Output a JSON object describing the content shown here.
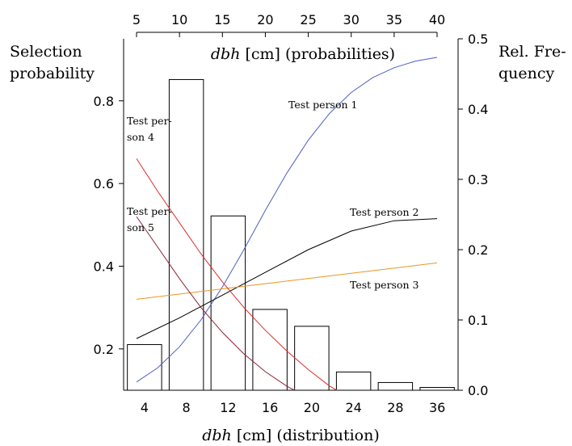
{
  "chart_data": {
    "type": "bar",
    "left_axis_title": [
      "Selection",
      "probability"
    ],
    "right_axis_title": [
      "Rel. Fre-",
      "quency"
    ],
    "top_axis_label": {
      "italic": "dbh",
      "rest": " [cm] (probabilities)"
    },
    "bottom_axis_label": {
      "italic": "dbh",
      "rest": " [cm] (distribution)"
    },
    "top_axis": {
      "range": [
        5,
        40
      ],
      "ticks": [
        "5",
        "10",
        "15",
        "20",
        "25",
        "30",
        "35",
        "40"
      ]
    },
    "left_axis": {
      "range": [
        0.1,
        0.95
      ],
      "ticks": [
        {
          "value": 0.2,
          "label": "0.2"
        },
        {
          "value": 0.4,
          "label": "0.4"
        },
        {
          "value": 0.6,
          "label": "0.6"
        },
        {
          "value": 0.8,
          "label": "0.8"
        }
      ]
    },
    "right_axis": {
      "range": [
        0.0,
        0.5
      ],
      "ticks": [
        {
          "value": 0.0,
          "label": "0.0"
        },
        {
          "value": 0.1,
          "label": "0.1"
        },
        {
          "value": 0.2,
          "label": "0.2"
        },
        {
          "value": 0.3,
          "label": "0.3"
        },
        {
          "value": 0.4,
          "label": "0.4"
        },
        {
          "value": 0.5,
          "label": "0.5"
        }
      ]
    },
    "histogram": {
      "categories": [
        "4",
        "8",
        "12",
        "16",
        "20",
        "24",
        "28",
        "36"
      ],
      "values": [
        0.065,
        0.442,
        0.248,
        0.115,
        0.091,
        0.026,
        0.011,
        0.004
      ]
    },
    "series": [
      {
        "name": "Test person 1",
        "color": "#4f5fbf",
        "label": [
          "Test person 1"
        ],
        "points": [
          [
            5,
            0.12
          ],
          [
            7.5,
            0.155
          ],
          [
            10,
            0.205
          ],
          [
            12.5,
            0.27
          ],
          [
            15,
            0.35
          ],
          [
            17.5,
            0.44
          ],
          [
            20,
            0.535
          ],
          [
            22.5,
            0.625
          ],
          [
            25,
            0.705
          ],
          [
            27.5,
            0.77
          ],
          [
            30,
            0.82
          ],
          [
            32.5,
            0.856
          ],
          [
            35,
            0.88
          ],
          [
            37.5,
            0.896
          ],
          [
            40,
            0.905
          ]
        ]
      },
      {
        "name": "Test person 2",
        "color": "#000000",
        "label": [
          "Test person 2"
        ],
        "points": [
          [
            5,
            0.225
          ],
          [
            10,
            0.275
          ],
          [
            15,
            0.33
          ],
          [
            20,
            0.385
          ],
          [
            25,
            0.44
          ],
          [
            30,
            0.485
          ],
          [
            35,
            0.51
          ],
          [
            40,
            0.515
          ]
        ]
      },
      {
        "name": "Test person 3",
        "color": "#e8961e",
        "label": [
          "Test person 3"
        ],
        "points": [
          [
            5,
            0.32
          ],
          [
            40,
            0.408
          ]
        ]
      },
      {
        "name": "Test person 4",
        "color": "#dd2a2a",
        "label": [
          "Test per-",
          "son 4"
        ],
        "points": [
          [
            5,
            0.66
          ],
          [
            7.5,
            0.58
          ],
          [
            10,
            0.505
          ],
          [
            12.5,
            0.43
          ],
          [
            15,
            0.362
          ],
          [
            17.5,
            0.3
          ],
          [
            20,
            0.245
          ],
          [
            22.5,
            0.195
          ],
          [
            25,
            0.15
          ],
          [
            27.5,
            0.11
          ],
          [
            30,
            0.08
          ]
        ]
      },
      {
        "name": "Test person 5",
        "color": "#8b2332",
        "label": [
          "Test per-",
          "son 5"
        ],
        "points": [
          [
            5,
            0.52
          ],
          [
            7.5,
            0.445
          ],
          [
            10,
            0.37
          ],
          [
            12.5,
            0.3
          ],
          [
            15,
            0.24
          ],
          [
            17.5,
            0.188
          ],
          [
            20,
            0.145
          ],
          [
            22.5,
            0.11
          ],
          [
            25,
            0.082
          ]
        ]
      }
    ]
  }
}
